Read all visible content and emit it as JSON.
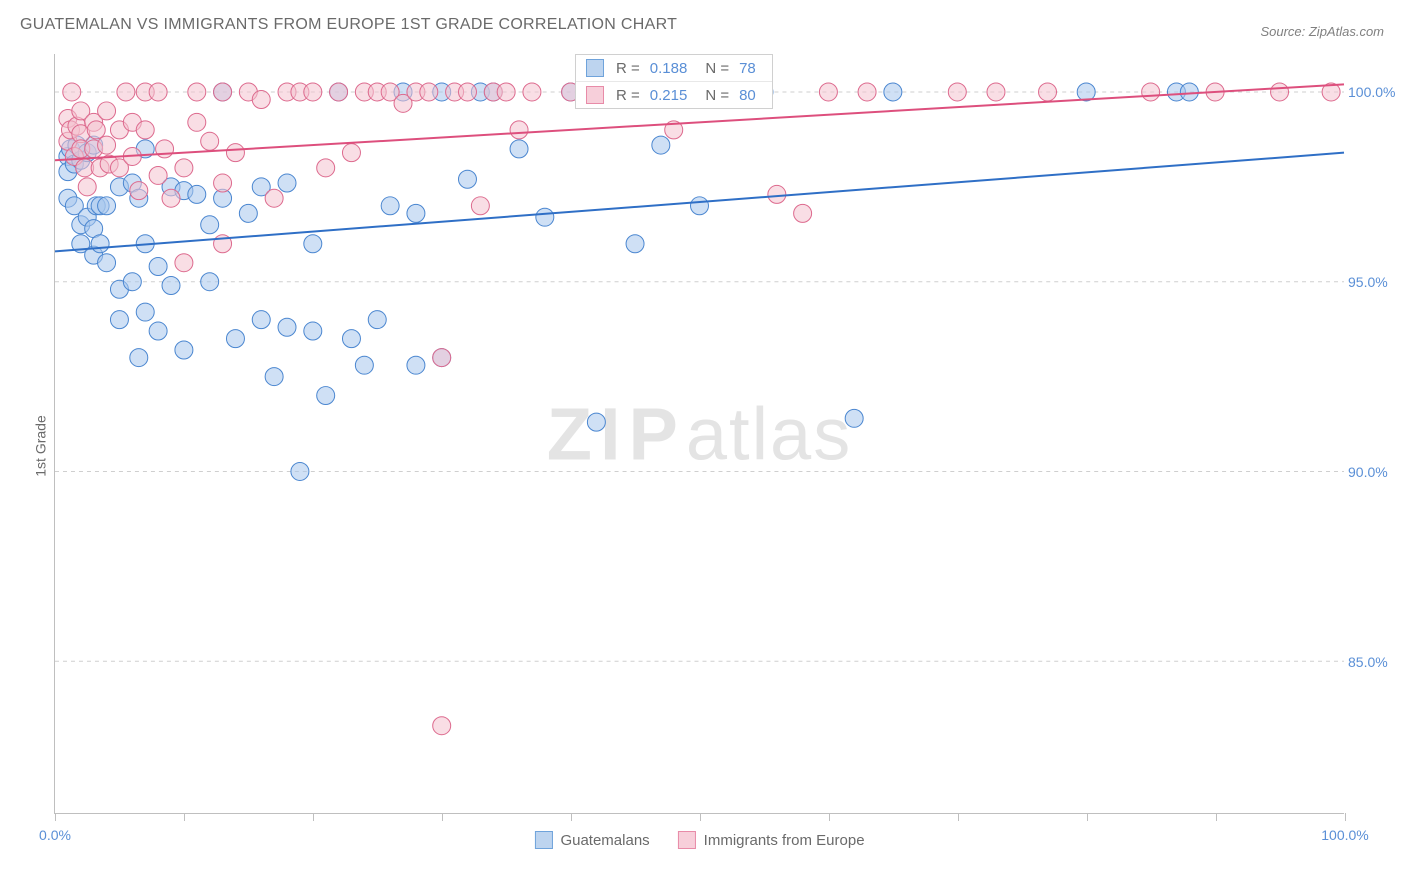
{
  "title": "GUATEMALAN VS IMMIGRANTS FROM EUROPE 1ST GRADE CORRELATION CHART",
  "source": "Source: ZipAtlas.com",
  "ylabel": "1st Grade",
  "watermark_a": "ZIP",
  "watermark_b": "atlas",
  "chart": {
    "type": "scatter",
    "background_color": "#ffffff",
    "grid_color": "#cfcfcf",
    "axis_color": "#bfbfbf",
    "xlim": [
      0,
      100
    ],
    "ylim": [
      81,
      101
    ],
    "ytick_values": [
      85.0,
      90.0,
      95.0,
      100.0
    ],
    "ytick_labels": [
      "85.0%",
      "90.0%",
      "95.0%",
      "100.0%"
    ],
    "xtick_values": [
      0,
      10,
      20,
      30,
      40,
      50,
      60,
      70,
      80,
      90,
      100
    ],
    "xtick_label_positions": [
      0,
      100
    ],
    "xtick_labels": [
      "0.0%",
      "100.0%"
    ],
    "tick_label_color": "#5a8fd6",
    "tick_label_fontsize": 14,
    "marker_radius": 9,
    "marker_opacity": 0.55,
    "trend_line_width": 2,
    "series": [
      {
        "name": "Guatemalans",
        "color_fill": "#a7c6ed",
        "color_stroke": "#4a86d0",
        "legend_swatch_fill": "#bdd4ef",
        "legend_swatch_stroke": "#6fa3db",
        "R": "0.188",
        "N": "78",
        "trend": {
          "x1": 0,
          "y1": 95.8,
          "x2": 100,
          "y2": 98.4,
          "color": "#2f6fc6"
        },
        "points": [
          [
            1,
            98.3
          ],
          [
            1,
            97.9
          ],
          [
            1,
            97.2
          ],
          [
            1.2,
            98.5
          ],
          [
            1.5,
            98.1
          ],
          [
            1.5,
            97.0
          ],
          [
            1.7,
            98.6
          ],
          [
            2,
            98.2
          ],
          [
            2,
            96.5
          ],
          [
            2,
            96.0
          ],
          [
            2.5,
            98.4
          ],
          [
            2.5,
            96.7
          ],
          [
            3,
            98.6
          ],
          [
            3,
            95.7
          ],
          [
            3,
            96.4
          ],
          [
            3.2,
            97.0
          ],
          [
            3.5,
            97.0
          ],
          [
            3.5,
            96.0
          ],
          [
            4,
            97.0
          ],
          [
            4,
            95.5
          ],
          [
            5,
            97.5
          ],
          [
            5,
            94.8
          ],
          [
            5,
            94.0
          ],
          [
            6,
            97.6
          ],
          [
            6,
            95.0
          ],
          [
            6.5,
            97.2
          ],
          [
            6.5,
            93.0
          ],
          [
            7,
            98.5
          ],
          [
            7,
            96.0
          ],
          [
            7,
            94.2
          ],
          [
            8,
            93.7
          ],
          [
            8,
            95.4
          ],
          [
            9,
            97.5
          ],
          [
            9,
            94.9
          ],
          [
            10,
            97.4
          ],
          [
            10,
            93.2
          ],
          [
            11,
            97.3
          ],
          [
            12,
            96.5
          ],
          [
            12,
            95.0
          ],
          [
            13,
            100.0
          ],
          [
            13,
            97.2
          ],
          [
            14,
            93.5
          ],
          [
            15,
            96.8
          ],
          [
            16,
            94.0
          ],
          [
            16,
            97.5
          ],
          [
            17,
            92.5
          ],
          [
            18,
            97.6
          ],
          [
            18,
            93.8
          ],
          [
            19,
            90.0
          ],
          [
            20,
            96.0
          ],
          [
            20,
            93.7
          ],
          [
            21,
            92.0
          ],
          [
            22,
            100.0
          ],
          [
            23,
            93.5
          ],
          [
            24,
            92.8
          ],
          [
            25,
            94.0
          ],
          [
            26,
            97.0
          ],
          [
            27,
            100.0
          ],
          [
            28,
            96.8
          ],
          [
            28,
            92.8
          ],
          [
            30,
            100.0
          ],
          [
            30,
            93.0
          ],
          [
            32,
            97.7
          ],
          [
            33,
            100.0
          ],
          [
            34,
            100.0
          ],
          [
            36,
            98.5
          ],
          [
            38,
            96.7
          ],
          [
            40,
            100.0
          ],
          [
            42,
            91.3
          ],
          [
            45,
            96.0
          ],
          [
            47,
            98.6
          ],
          [
            50,
            97.0
          ],
          [
            55,
            100.0
          ],
          [
            62,
            91.4
          ],
          [
            65,
            100.0
          ],
          [
            80,
            100.0
          ],
          [
            87,
            100.0
          ],
          [
            88,
            100.0
          ]
        ]
      },
      {
        "name": "Immigrants from Europe",
        "color_fill": "#f4c2d0",
        "color_stroke": "#dd6a8e",
        "legend_swatch_fill": "#f7cfda",
        "legend_swatch_stroke": "#e88ba8",
        "R": "0.215",
        "N": "80",
        "trend": {
          "x1": 0,
          "y1": 98.2,
          "x2": 100,
          "y2": 100.2,
          "color": "#dd4f7d"
        },
        "points": [
          [
            1,
            99.3
          ],
          [
            1,
            98.7
          ],
          [
            1.2,
            99.0
          ],
          [
            1.3,
            100.0
          ],
          [
            1.5,
            98.3
          ],
          [
            1.7,
            99.1
          ],
          [
            2,
            98.9
          ],
          [
            2,
            98.5
          ],
          [
            2,
            99.5
          ],
          [
            2.3,
            98.0
          ],
          [
            2.5,
            97.5
          ],
          [
            3,
            99.2
          ],
          [
            3,
            98.5
          ],
          [
            3.2,
            99.0
          ],
          [
            3.5,
            98.0
          ],
          [
            4,
            98.6
          ],
          [
            4,
            99.5
          ],
          [
            4.2,
            98.1
          ],
          [
            5,
            99.0
          ],
          [
            5,
            98.0
          ],
          [
            5.5,
            100.0
          ],
          [
            6,
            98.3
          ],
          [
            6,
            99.2
          ],
          [
            6.5,
            97.4
          ],
          [
            7,
            99.0
          ],
          [
            7,
            100.0
          ],
          [
            8,
            97.8
          ],
          [
            8,
            100.0
          ],
          [
            8.5,
            98.5
          ],
          [
            9,
            97.2
          ],
          [
            10,
            98.0
          ],
          [
            10,
            95.5
          ],
          [
            11,
            99.2
          ],
          [
            11,
            100.0
          ],
          [
            12,
            98.7
          ],
          [
            13,
            96.0
          ],
          [
            13,
            100.0
          ],
          [
            13,
            97.6
          ],
          [
            14,
            98.4
          ],
          [
            15,
            100.0
          ],
          [
            16,
            99.8
          ],
          [
            17,
            97.2
          ],
          [
            18,
            100.0
          ],
          [
            19,
            100.0
          ],
          [
            20,
            100.0
          ],
          [
            21,
            98.0
          ],
          [
            22,
            100.0
          ],
          [
            23,
            98.4
          ],
          [
            24,
            100.0
          ],
          [
            25,
            100.0
          ],
          [
            26,
            100.0
          ],
          [
            27,
            99.7
          ],
          [
            28,
            100.0
          ],
          [
            29,
            100.0
          ],
          [
            30,
            93.0
          ],
          [
            30,
            83.3
          ],
          [
            31,
            100.0
          ],
          [
            32,
            100.0
          ],
          [
            33,
            97.0
          ],
          [
            34,
            100.0
          ],
          [
            35,
            100.0
          ],
          [
            36,
            99.0
          ],
          [
            37,
            100.0
          ],
          [
            40,
            100.0
          ],
          [
            42,
            100.0
          ],
          [
            44,
            100.0
          ],
          [
            48,
            99.0
          ],
          [
            50,
            100.0
          ],
          [
            53,
            100.0
          ],
          [
            56,
            97.3
          ],
          [
            58,
            96.8
          ],
          [
            60,
            100.0
          ],
          [
            63,
            100.0
          ],
          [
            70,
            100.0
          ],
          [
            73,
            100.0
          ],
          [
            77,
            100.0
          ],
          [
            85,
            100.0
          ],
          [
            90,
            100.0
          ],
          [
            95,
            100.0
          ],
          [
            99,
            100.0
          ]
        ]
      }
    ]
  },
  "legend_top": {
    "R_label": "R =",
    "N_label": "N ="
  },
  "legend_bottom": {
    "items": [
      "Guatemalans",
      "Immigrants from Europe"
    ]
  }
}
